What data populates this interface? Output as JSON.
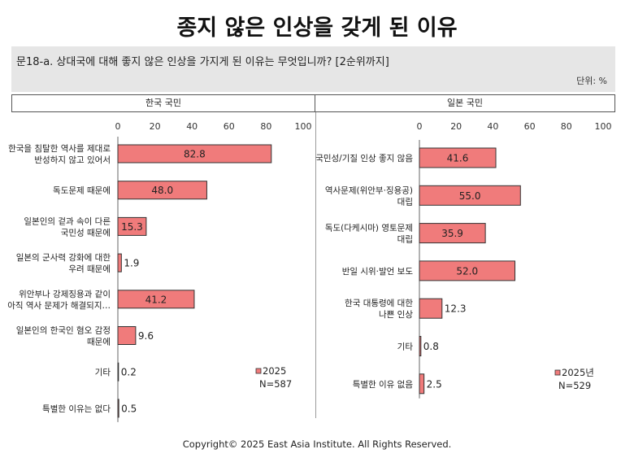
{
  "page_title": "종지 않은 인상을 갖게 된 이유",
  "question": "문18-a. 상대국에 대해 좋지 않은 인상을 가지게 된 이유는 무엇입니까? [2순위까지]",
  "unit": "단위: %",
  "footer": "Copyright© 2025 East Asia Institute. All Rights Reserved.",
  "colors": {
    "bar_fill": "#f07b7b",
    "bar_stroke": "#333333",
    "axis": "#666666"
  },
  "chart_data": [
    {
      "type": "bar",
      "orientation": "horizontal",
      "panel_title": "한국 국민",
      "categories": [
        [
          "한국을 침탈한 역사를 제대로",
          "반성하지 않고 있어서"
        ],
        [
          "독도문제 때문에"
        ],
        [
          "일본인의 겉과 속이 다른",
          "국민성 때문에"
        ],
        [
          "일본의 군사력 강화에 대한",
          "우려 때문에"
        ],
        [
          "위안부나 강제징용과 같이",
          "아직 역사 문제가 해결되지…"
        ],
        [
          "일본인의 한국인 혐오 감정",
          "때문에"
        ],
        [
          "기타"
        ],
        [
          "특별한 이유는 없다"
        ]
      ],
      "values": [
        82.8,
        48.0,
        15.3,
        1.9,
        41.2,
        9.6,
        0.2,
        0.5
      ],
      "value_labels": [
        "82.8",
        "48.0",
        "15.3",
        "1.9",
        "41.2",
        "9.6",
        "0.2",
        "0.5"
      ],
      "xlim": [
        0,
        100
      ],
      "ticks": [
        "0",
        "20",
        "40",
        "60",
        "80",
        "100"
      ],
      "legend": {
        "series": "2025",
        "n": "N=587"
      }
    },
    {
      "type": "bar",
      "orientation": "horizontal",
      "panel_title": "일본 국민",
      "categories": [
        [
          "국민성/기질 인상 좋지 않음"
        ],
        [
          "역사문제(위안부·징용공)",
          "대립"
        ],
        [
          "독도(다케시마) 영토문제",
          "대립"
        ],
        [
          "반일 시위·발언 보도"
        ],
        [
          "한국 대통령에 대한",
          "나쁜 인상"
        ],
        [
          "기타"
        ],
        [
          "특별한 이유 없음"
        ]
      ],
      "values": [
        41.6,
        55.0,
        35.9,
        52.0,
        12.3,
        0.8,
        2.5
      ],
      "value_labels": [
        "41.6",
        "55.0",
        "35.9",
        "52.0",
        "12.3",
        "0.8",
        "2.5"
      ],
      "xlim": [
        0,
        100
      ],
      "ticks": [
        "0",
        "20",
        "40",
        "60",
        "80",
        "100"
      ],
      "legend": {
        "series": "2025년",
        "n": "N=529"
      }
    }
  ]
}
